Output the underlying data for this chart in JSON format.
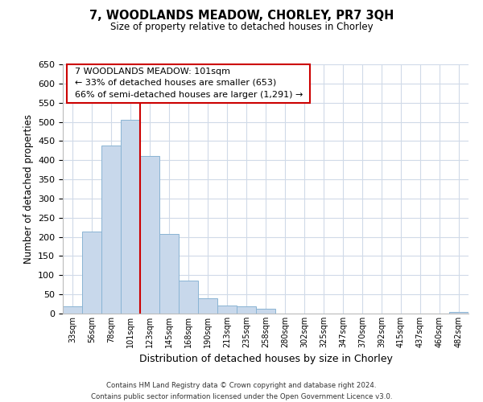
{
  "title": "7, WOODLANDS MEADOW, CHORLEY, PR7 3QH",
  "subtitle": "Size of property relative to detached houses in Chorley",
  "xlabel": "Distribution of detached houses by size in Chorley",
  "ylabel": "Number of detached properties",
  "bar_labels": [
    "33sqm",
    "56sqm",
    "78sqm",
    "101sqm",
    "123sqm",
    "145sqm",
    "168sqm",
    "190sqm",
    "213sqm",
    "235sqm",
    "258sqm",
    "280sqm",
    "302sqm",
    "325sqm",
    "347sqm",
    "370sqm",
    "392sqm",
    "415sqm",
    "437sqm",
    "460sqm",
    "482sqm"
  ],
  "bar_values": [
    18,
    213,
    438,
    505,
    412,
    207,
    87,
    40,
    22,
    19,
    12,
    0,
    0,
    0,
    0,
    0,
    0,
    0,
    0,
    0,
    4
  ],
  "bar_color": "#c8d8eb",
  "bar_edge_color": "#8ab4d4",
  "vline_x_index": 3,
  "vline_color": "#cc0000",
  "ylim": [
    0,
    650
  ],
  "yticks": [
    0,
    50,
    100,
    150,
    200,
    250,
    300,
    350,
    400,
    450,
    500,
    550,
    600,
    650
  ],
  "annotation_title": "7 WOODLANDS MEADOW: 101sqm",
  "annotation_line1": "← 33% of detached houses are smaller (653)",
  "annotation_line2": "66% of semi-detached houses are larger (1,291) →",
  "annotation_box_color": "#ffffff",
  "annotation_box_edge": "#cc0000",
  "footer_line1": "Contains HM Land Registry data © Crown copyright and database right 2024.",
  "footer_line2": "Contains public sector information licensed under the Open Government Licence v3.0.",
  "background_color": "#ffffff",
  "grid_color": "#d0dae8"
}
